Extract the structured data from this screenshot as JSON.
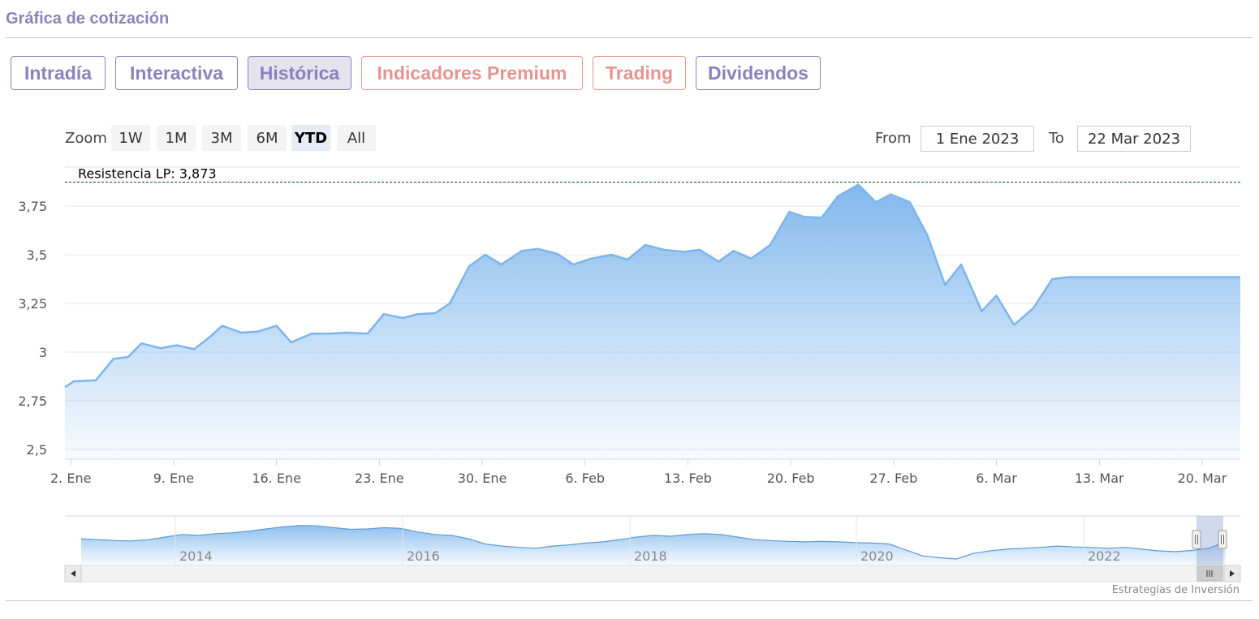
{
  "section_title": "Gráfica de cotización",
  "tabs": [
    {
      "label": "Intradía",
      "state": "normal"
    },
    {
      "label": "Interactiva",
      "state": "normal"
    },
    {
      "label": "Histórica",
      "state": "active"
    },
    {
      "label": "Indicadores Premium",
      "state": "premium"
    },
    {
      "label": "Trading",
      "state": "premium"
    },
    {
      "label": "Dividendos",
      "state": "normal"
    }
  ],
  "zoom": {
    "label": "Zoom",
    "buttons": [
      "1W",
      "1M",
      "3M",
      "6M",
      "YTD",
      "All"
    ],
    "active": "YTD"
  },
  "range": {
    "from_label": "From",
    "from_value": "1 Ene 2023",
    "to_label": "To",
    "to_value": "22 Mar 2023"
  },
  "colors": {
    "accent": "#8c82bb",
    "premium": "#e8948e",
    "series_line": "#7cb5ec",
    "resistance_line": "#006400"
  },
  "chart_data": {
    "type": "area",
    "title": "",
    "xlabel": "",
    "ylabel": "",
    "ylim": [
      2.45,
      3.95
    ],
    "yticks": [
      2.5,
      2.75,
      3,
      3.25,
      3.5,
      3.75
    ],
    "ytick_labels": [
      "2,5",
      "2,75",
      "3",
      "3,25",
      "3,5",
      "3,75"
    ],
    "xtick_labels": [
      "2. Ene",
      "9. Ene",
      "16. Ene",
      "23. Ene",
      "30. Ene",
      "6. Feb",
      "13. Feb",
      "20. Feb",
      "27. Feb",
      "6. Mar",
      "13. Mar",
      "20. Mar"
    ],
    "xtick_days": [
      1,
      8,
      15,
      22,
      29,
      36,
      43,
      50,
      57,
      64,
      71,
      78
    ],
    "x_range_days": [
      0.6,
      80.6
    ],
    "x": [
      0.6,
      1.2,
      2.7,
      3.9,
      4.9,
      5.8,
      7.1,
      8.2,
      9.4,
      10.5,
      11.3,
      12.6,
      13.7,
      15.0,
      16.0,
      17.4,
      18.6,
      19.8,
      21.2,
      22.3,
      23.6,
      24.6,
      25.8,
      26.8,
      28.1,
      29.2,
      30.3,
      31.7,
      32.8,
      34.1,
      35.2,
      36.4,
      37.8,
      38.9,
      40.1,
      41.4,
      42.7,
      43.8,
      45.1,
      46.1,
      47.3,
      48.6,
      49.9,
      50.9,
      52.1,
      53.2,
      54.6,
      55.8,
      56.8,
      58.1,
      59.3,
      60.5,
      61.6,
      63.0,
      64.0,
      65.2,
      66.5,
      67.8,
      68.9,
      70.3,
      71.3,
      72.6,
      73.8,
      74.9,
      76.1,
      77.3,
      78.6,
      79.6,
      80.6
    ],
    "values": [
      2.82,
      2.85,
      2.855,
      2.965,
      2.975,
      3.045,
      3.02,
      3.035,
      3.015,
      3.08,
      3.135,
      3.1,
      3.105,
      3.135,
      3.05,
      3.095,
      3.095,
      3.1,
      3.095,
      3.195,
      3.175,
      3.195,
      3.2,
      3.25,
      3.44,
      3.5,
      3.45,
      3.52,
      3.53,
      3.505,
      3.45,
      3.48,
      3.5,
      3.475,
      3.55,
      3.525,
      3.515,
      3.525,
      3.465,
      3.52,
      3.48,
      3.55,
      3.72,
      3.695,
      3.69,
      3.8,
      3.86,
      3.77,
      3.81,
      3.77,
      3.6,
      3.345,
      3.45,
      3.21,
      3.29,
      3.14,
      3.225,
      3.375,
      3.385,
      3.385,
      3.385,
      3.385,
      3.385,
      3.385,
      3.385,
      3.385,
      3.385,
      3.385,
      3.385
    ],
    "resistance": {
      "label": "Resistencia LP: 3,873",
      "value": 3.873
    },
    "grid": true,
    "legend": "none",
    "navigator": {
      "year_labels": [
        "2014",
        "2016",
        "2018",
        "2020",
        "2022"
      ],
      "series": [
        0.62,
        0.6,
        0.58,
        0.57,
        0.6,
        0.66,
        0.72,
        0.7,
        0.74,
        0.76,
        0.8,
        0.85,
        0.9,
        0.93,
        0.92,
        0.88,
        0.84,
        0.85,
        0.88,
        0.86,
        0.78,
        0.72,
        0.7,
        0.62,
        0.5,
        0.45,
        0.42,
        0.4,
        0.45,
        0.48,
        0.52,
        0.55,
        0.6,
        0.66,
        0.7,
        0.68,
        0.72,
        0.74,
        0.72,
        0.66,
        0.6,
        0.58,
        0.56,
        0.55,
        0.56,
        0.55,
        0.53,
        0.52,
        0.5,
        0.36,
        0.22,
        0.18,
        0.15,
        0.28,
        0.34,
        0.38,
        0.4,
        0.42,
        0.45,
        0.43,
        0.42,
        0.4,
        0.42,
        0.38,
        0.34,
        0.32,
        0.35,
        0.4,
        0.55
      ]
    }
  },
  "credits": "Estrategias de Inversión"
}
